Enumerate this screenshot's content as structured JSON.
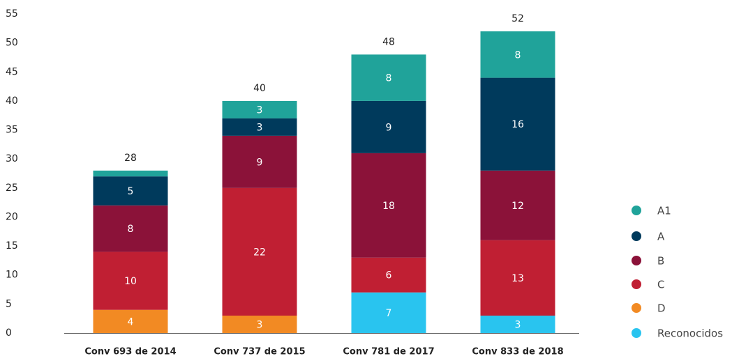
{
  "chart_data": {
    "type": "stacked_bar",
    "categories": [
      "Conv 693 de 2014",
      "Conv 737 de 2015",
      "Conv 781 de 2017",
      "Conv 833 de 2018"
    ],
    "series": [
      {
        "name": "Reconocidos",
        "color": "#29c4ef",
        "values": [
          null,
          null,
          7,
          3
        ]
      },
      {
        "name": "D",
        "color": "#f28a23",
        "values": [
          4,
          3,
          null,
          null
        ]
      },
      {
        "name": "C",
        "color": "#c01f33",
        "values": [
          10,
          22,
          6,
          13
        ]
      },
      {
        "name": "B",
        "color": "#8b1239",
        "values": [
          8,
          9,
          18,
          12
        ]
      },
      {
        "name": "A",
        "color": "#003a5c",
        "values": [
          5,
          3,
          9,
          16
        ]
      },
      {
        "name": "A1",
        "color": "#20a39a",
        "values": [
          1,
          3,
          8,
          8
        ]
      }
    ],
    "totals": [
      28,
      40,
      48,
      52
    ],
    "ylim": [
      0,
      55
    ],
    "yticks": [
      0,
      5,
      10,
      15,
      20,
      25,
      30,
      35,
      40,
      45,
      50,
      55
    ],
    "grid": false,
    "legend": "right"
  }
}
